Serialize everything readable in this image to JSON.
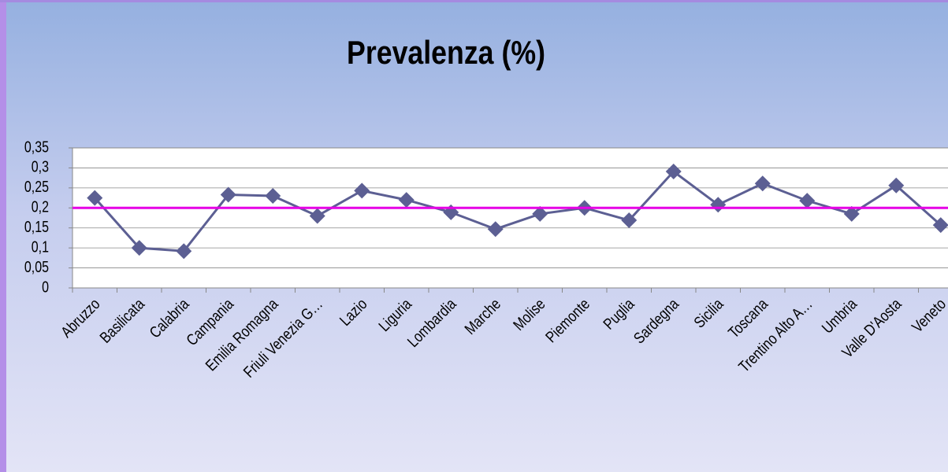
{
  "chart_data": {
    "type": "line",
    "title": "Prevalenza (%)",
    "categories": [
      "Abruzzo",
      "Basilicata",
      "Calabria",
      "Campania",
      "Emilia Romagna",
      "Friuli Venezia G…",
      "Lazio",
      "Liguria",
      "Lombardia",
      "Marche",
      "Molise",
      "Piemonte",
      "Puglia",
      "Sardegna",
      "Sicilia",
      "Toscana",
      "Trentino Alto A…",
      "Umbria",
      "Valle D'Aosta",
      "Veneto"
    ],
    "values": [
      0.225,
      0.1,
      0.092,
      0.233,
      0.23,
      0.18,
      0.243,
      0.22,
      0.189,
      0.147,
      0.185,
      0.2,
      0.169,
      0.291,
      0.208,
      0.261,
      0.218,
      0.185,
      0.256,
      0.157
    ],
    "color": "#5c5f93",
    "reference_line": {
      "value": 0.2,
      "color": "#e600e6"
    },
    "ylim": [
      0,
      0.35
    ],
    "yticks": [
      {
        "value": 0,
        "label": "0"
      },
      {
        "value": 0.05,
        "label": "0,05"
      },
      {
        "value": 0.1,
        "label": "0,1"
      },
      {
        "value": 0.15,
        "label": "0,15"
      },
      {
        "value": 0.2,
        "label": "0,2"
      },
      {
        "value": 0.25,
        "label": "0,25"
      },
      {
        "value": 0.3,
        "label": "0,3"
      },
      {
        "value": 0.35,
        "label": "0,35"
      }
    ],
    "grid": true
  }
}
